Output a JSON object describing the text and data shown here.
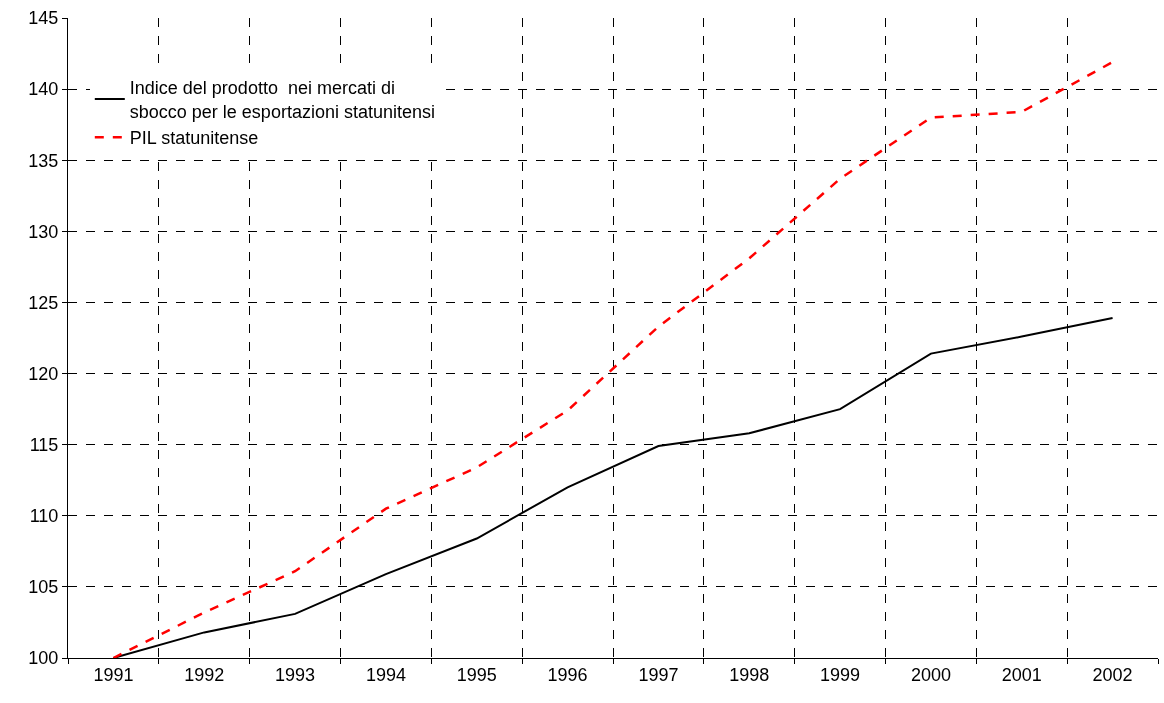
{
  "chart_data": {
    "type": "line",
    "categories": [
      "1991",
      "1992",
      "1993",
      "1994",
      "1995",
      "1996",
      "1997",
      "1998",
      "1999",
      "2000",
      "2001",
      "2002"
    ],
    "series": [
      {
        "name": "Indice del prodotto  nei mercati di\nsbocco per le esportazioni statunitensi",
        "color": "#000000",
        "line_style": "solid",
        "values": [
          100,
          101.8,
          103.1,
          105.9,
          108.4,
          112.0,
          114.9,
          115.8,
          117.5,
          121.4,
          122.6,
          123.9
        ]
      },
      {
        "name": "PIL statunitense",
        "color": "#ff0000",
        "line_style": "dashed",
        "values": [
          100,
          103.2,
          106.1,
          110.5,
          113.4,
          117.4,
          123.3,
          128.1,
          133.7,
          138.0,
          138.4,
          141.9
        ]
      }
    ],
    "ylim": [
      100,
      145
    ],
    "yticks": [
      100,
      105,
      110,
      115,
      120,
      125,
      130,
      135,
      140,
      145
    ],
    "grid": true,
    "legend": "top left",
    "marker": "none"
  }
}
